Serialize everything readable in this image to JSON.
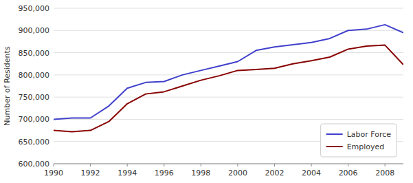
{
  "chart_data": {
    "type": "line",
    "x": [
      1990,
      1991,
      1992,
      1993,
      1994,
      1995,
      1996,
      1997,
      1998,
      1999,
      2000,
      2001,
      2002,
      2003,
      2004,
      2005,
      2006,
      2007,
      2008,
      2009
    ],
    "series": [
      {
        "name": "Labor Force",
        "color": "#4040cc",
        "values": [
          700000,
          703000,
          703000,
          730000,
          770000,
          783000,
          785000,
          800000,
          810000,
          820000,
          830000,
          855000,
          863000,
          868000,
          873000,
          882000,
          900000,
          903000,
          913000,
          895000
        ]
      },
      {
        "name": "Employed",
        "color": "#880000",
        "values": [
          675000,
          672000,
          675000,
          695000,
          735000,
          757000,
          762000,
          775000,
          788000,
          798000,
          810000,
          812000,
          815000,
          825000,
          832000,
          840000,
          858000,
          865000,
          867000,
          823000
        ]
      }
    ],
    "ylabel": "Number of Residents",
    "xlim": [
      1990,
      2009
    ],
    "xticks": [
      1990,
      1992,
      1994,
      1996,
      1998,
      2000,
      2002,
      2004,
      2006,
      2008
    ],
    "ylim": [
      600000,
      950000
    ],
    "yticks": [
      {
        "value": 600000,
        "label": "600,000"
      },
      {
        "value": 650000,
        "label": "650,000"
      },
      {
        "value": 700000,
        "label": "700,000"
      },
      {
        "value": 750000,
        "label": "750,000"
      },
      {
        "value": 800000,
        "label": "800,000"
      },
      {
        "value": 850000,
        "label": "850,000"
      },
      {
        "value": 900000,
        "label": "900,000"
      },
      {
        "value": 950000,
        "label": "950,000"
      }
    ],
    "grid": true,
    "legend": "lower right"
  }
}
